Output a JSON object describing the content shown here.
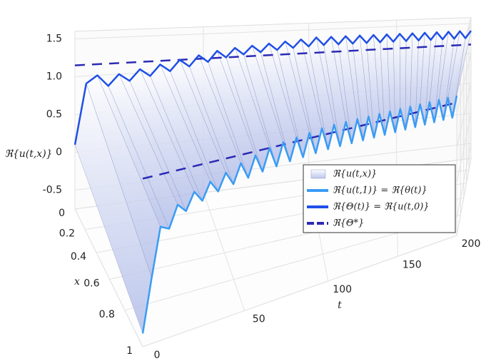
{
  "chart_data": {
    "type": "surface3d",
    "zlabel": "ℜ{u(t,x)}",
    "xlabel": "x",
    "tlabel": "t",
    "t": [
      0,
      4,
      8,
      12,
      16,
      20,
      24,
      28,
      32,
      36,
      40,
      44,
      48,
      52,
      56,
      60,
      64,
      68,
      72,
      76,
      80,
      84,
      88,
      92,
      96,
      100,
      104,
      108,
      112,
      116,
      120,
      124,
      128,
      132,
      136,
      140,
      144,
      148,
      152,
      156,
      160,
      164,
      168,
      172,
      176,
      180,
      184,
      188,
      192,
      196,
      200
    ],
    "surface": {
      "name": "ℜ{u(t,x)}",
      "color": "#a9b6e6"
    },
    "series": [
      {
        "name": "ℜ{u(t,1)} = ℜ{θ(t)}",
        "color": "#3a9cf5",
        "x_position": 1,
        "values": [
          -0.6,
          0.0,
          0.55,
          0.5,
          0.75,
          0.65,
          0.85,
          0.72,
          0.92,
          0.78,
          0.98,
          0.82,
          1.05,
          0.85,
          1.1,
          0.88,
          1.15,
          0.9,
          1.18,
          0.92,
          1.2,
          0.93,
          1.22,
          0.94,
          1.24,
          0.95,
          1.25,
          0.95,
          1.25,
          0.95,
          1.25,
          0.95,
          1.25,
          0.95,
          1.25,
          0.95,
          1.25,
          0.95,
          1.25,
          0.95,
          1.25,
          0.95,
          1.25,
          0.95,
          1.25,
          0.95,
          1.25,
          0.95,
          1.25,
          0.95,
          1.25
        ]
      },
      {
        "name": "ℜ{Θ(t)} = ℜ{u(t,0)}",
        "color": "#1f4fe6",
        "x_position": 0,
        "values": [
          0.1,
          0.9,
          1.0,
          0.85,
          1.0,
          0.9,
          1.05,
          0.95,
          1.1,
          1.0,
          1.15,
          1.05,
          1.2,
          1.1,
          1.25,
          1.15,
          1.28,
          1.18,
          1.3,
          1.2,
          1.32,
          1.22,
          1.34,
          1.24,
          1.36,
          1.25,
          1.38,
          1.26,
          1.38,
          1.26,
          1.38,
          1.26,
          1.38,
          1.26,
          1.38,
          1.26,
          1.38,
          1.26,
          1.38,
          1.26,
          1.38,
          1.26,
          1.38,
          1.26,
          1.38,
          1.26,
          1.38,
          1.26,
          1.38,
          1.26,
          1.38
        ]
      }
    ],
    "reference": {
      "name": "ℜ{Θ*}",
      "color": "#2b2bb5",
      "value": 1.15
    },
    "tlim": [
      0,
      200
    ],
    "tticks": [
      0,
      50,
      100,
      150,
      200
    ],
    "xlim": [
      0,
      1
    ],
    "xticks": [
      0,
      0.2,
      0.4,
      0.6,
      0.8,
      1
    ],
    "zlim": [
      -0.75,
      1.6
    ],
    "zticks": [
      -0.5,
      0,
      0.5,
      {
        "value": 1,
        "label": "1.0"
      },
      1.5
    ],
    "grid": true
  }
}
